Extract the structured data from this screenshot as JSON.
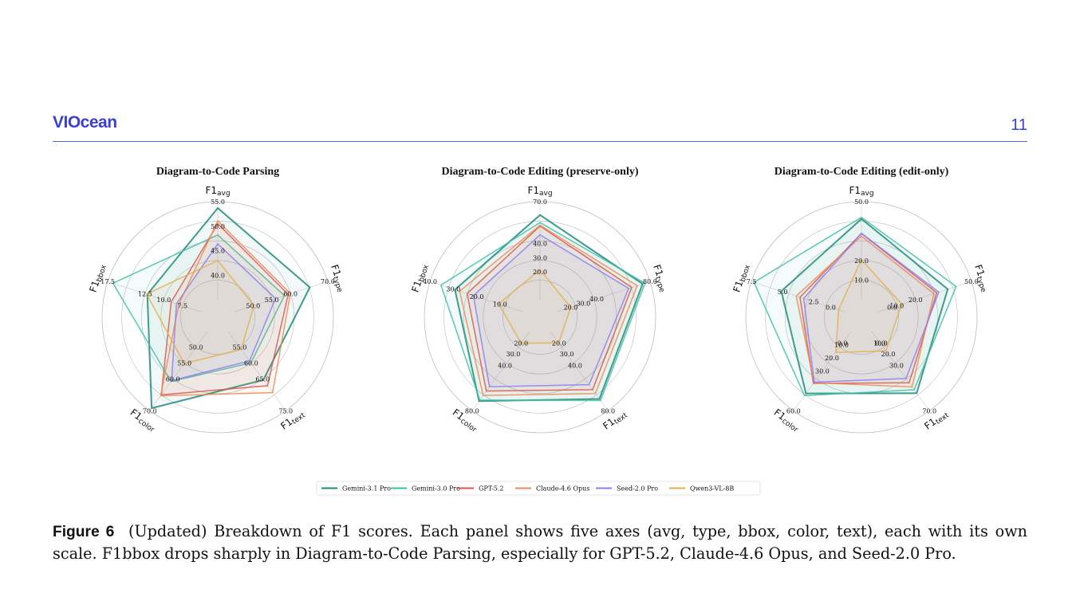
{
  "header": {
    "logo": "VIOcean",
    "page_number": "11"
  },
  "caption": {
    "label": "Figure 6",
    "text": "(Updated) Breakdown of F1 scores. Each panel shows five axes (avg, type, bbox, color, text), each with its own scale. F1bbox drops sharply in Diagram-to-Code Parsing, especially for GPT-5.2, Claude-4.6 Opus, and Seed-2.0 Pro."
  },
  "colors": {
    "Gemini-3.1 Pro": "#1f8a78",
    "Gemini-3.0 Pro": "#3dbfa6",
    "GPT-5.2": "#d9534f",
    "Claude-4.6 Opus": "#ee8a55",
    "Seed-2.0 Pro": "#8b7cf0",
    "Qwen3-VL-8B": "#e2b04a"
  },
  "chart_data": [
    {
      "type": "radar",
      "title": "Diagram-to-Code Parsing",
      "axes": [
        {
          "name": "F1avg",
          "base": "F1",
          "sub": "avg",
          "min": 35,
          "max": 55,
          "ticks": [
            "40.0",
            "45.0",
            "50.0",
            "55.0"
          ]
        },
        {
          "name": "F1type",
          "base": "F1",
          "sub": "type",
          "min": 45,
          "max": 70,
          "ticks": [
            "50.0",
            "55.0",
            "60.0",
            "70.0"
          ]
        },
        {
          "name": "F1text",
          "base": "F1",
          "sub": "text",
          "min": 50,
          "max": 75,
          "ticks": [
            "55.0",
            "60.0",
            "65.0",
            "75.0"
          ]
        },
        {
          "name": "F1color",
          "base": "F1",
          "sub": "color",
          "min": 45,
          "max": 70,
          "ticks": [
            "50.0",
            "55.0",
            "60.0",
            "70.0"
          ]
        },
        {
          "name": "F1bbox",
          "base": "F1",
          "sub": "bbox",
          "min": 5,
          "max": 17.5,
          "ticks": [
            "7.5",
            "10.0",
            "12.5",
            "17.5"
          ]
        }
      ],
      "series": [
        {
          "name": "Gemini-3.1 Pro",
          "values": [
            53.7,
            65.2,
            65.3,
            69.2,
            12.2
          ]
        },
        {
          "name": "Gemini-3.0 Pro",
          "values": [
            48.2,
            58.4,
            59.9,
            60.8,
            16.8
          ]
        },
        {
          "name": "GPT-5.2",
          "values": [
            50.5,
            59.4,
            67.1,
            65.0,
            9.0
          ]
        },
        {
          "name": "Claude-4.6 Opus",
          "values": [
            51.1,
            60.0,
            69.3,
            65.3,
            8.0
          ]
        },
        {
          "name": "Seed-2.0 Pro",
          "values": [
            46.4,
            56.0,
            59.3,
            60.5,
            8.3
          ]
        },
        {
          "name": "Qwen3-VL-8B",
          "values": [
            43.0,
            50.2,
            55.7,
            55.1,
            12.3
          ]
        }
      ]
    },
    {
      "type": "radar",
      "title": "Diagram-to-Code Editing (preserve-only)",
      "axes": [
        {
          "name": "F1avg",
          "base": "F1",
          "sub": "avg",
          "min": 0,
          "max": 70,
          "ticks": [
            "20.0",
            "30.0",
            "40.0",
            "70.0"
          ]
        },
        {
          "name": "F1type",
          "base": "F1",
          "sub": "type",
          "min": 10,
          "max": 80,
          "ticks": [
            "20.0",
            "30.0",
            "40.0",
            "80.0"
          ]
        },
        {
          "name": "F1text",
          "base": "F1",
          "sub": "text",
          "min": 10,
          "max": 80,
          "ticks": [
            "20.0",
            "30.0",
            "40.0",
            "80.0"
          ]
        },
        {
          "name": "F1color",
          "base": "F1",
          "sub": "color",
          "min": 10,
          "max": 80,
          "ticks": [
            "20.0",
            "30.0",
            "40.0",
            "80.0"
          ]
        },
        {
          "name": "F1bbox",
          "base": "F1",
          "sub": "bbox",
          "min": 0,
          "max": 40,
          "ticks": [
            "10.0",
            "20.0",
            "30.0",
            "40.0"
          ]
        }
      ],
      "series": [
        {
          "name": "Gemini-3.1 Pro",
          "values": [
            60.5,
            74.5,
            69.6,
            71.5,
            29.3
          ]
        },
        {
          "name": "Gemini-3.0 Pro",
          "values": [
            55.1,
            76.2,
            71.0,
            70.6,
            35.3
          ]
        },
        {
          "name": "GPT-5.2",
          "values": [
            52.6,
            66.3,
            61.4,
            62.6,
            24.1
          ]
        },
        {
          "name": "Claude-4.6 Opus",
          "values": [
            53.2,
            70.4,
            64.8,
            66.5,
            27.3
          ]
        },
        {
          "name": "Seed-2.0 Pro",
          "values": [
            46.3,
            64.0,
            57.0,
            58.8,
            21.4
          ]
        },
        {
          "name": "Qwen3-VL-8B",
          "values": [
            21.4,
            20.5,
            20.2,
            20.4,
            10.6
          ]
        }
      ]
    },
    {
      "type": "radar",
      "title": "Diagram-to-Code Editing (edit-only)",
      "axes": [
        {
          "name": "F1avg",
          "base": "F1",
          "sub": "avg",
          "min": 0,
          "max": 50,
          "ticks": [
            "10.0",
            "20.0",
            "50.0"
          ]
        },
        {
          "name": "F1type",
          "base": "F1",
          "sub": "type",
          "min": 0,
          "max": 50,
          "ticks": [
            "0.0",
            "10.0",
            "20.0",
            "50.0"
          ]
        },
        {
          "name": "F1text",
          "base": "F1",
          "sub": "text",
          "min": 0,
          "max": 70,
          "ticks": [
            "0.0",
            "10.0",
            "20.0",
            "30.0",
            "70.0"
          ]
        },
        {
          "name": "F1color",
          "base": "F1",
          "sub": "color",
          "min": 0,
          "max": 60,
          "ticks": [
            "0.0",
            "10.0",
            "20.0",
            "30.0",
            "60.0"
          ]
        },
        {
          "name": "F1bbox",
          "base": "F1",
          "sub": "bbox",
          "min": 0,
          "max": 7.5,
          "ticks": [
            "0.0",
            "2.5",
            "5.0",
            "7.5"
          ]
        }
      ],
      "series": [
        {
          "name": "Gemini-3.1 Pro",
          "values": [
            41.2,
            37.3,
            54.5,
            47.0,
            5.1
          ]
        },
        {
          "name": "Gemini-3.0 Pro",
          "values": [
            42.0,
            41.8,
            51.5,
            48.6,
            7.3
          ]
        },
        {
          "name": "GPT-5.2",
          "values": [
            33.8,
            31.4,
            45.4,
            39.3,
            3.6
          ]
        },
        {
          "name": "Claude-4.6 Opus",
          "values": [
            32.4,
            29.9,
            49.0,
            38.7,
            3.9
          ]
        },
        {
          "name": "Seed-2.0 Pro",
          "values": [
            33.9,
            32.5,
            41.6,
            38.4,
            3.3
          ]
        },
        {
          "name": "Qwen3-VL-8B",
          "values": [
            20.5,
            12.6,
            17.1,
            15.9,
            0.5
          ]
        }
      ]
    }
  ],
  "legend": [
    "Gemini-3.1 Pro",
    "Gemini-3.0 Pro",
    "GPT-5.2",
    "Claude-4.6 Opus",
    "Seed-2.0 Pro",
    "Qwen3-VL-8B"
  ]
}
